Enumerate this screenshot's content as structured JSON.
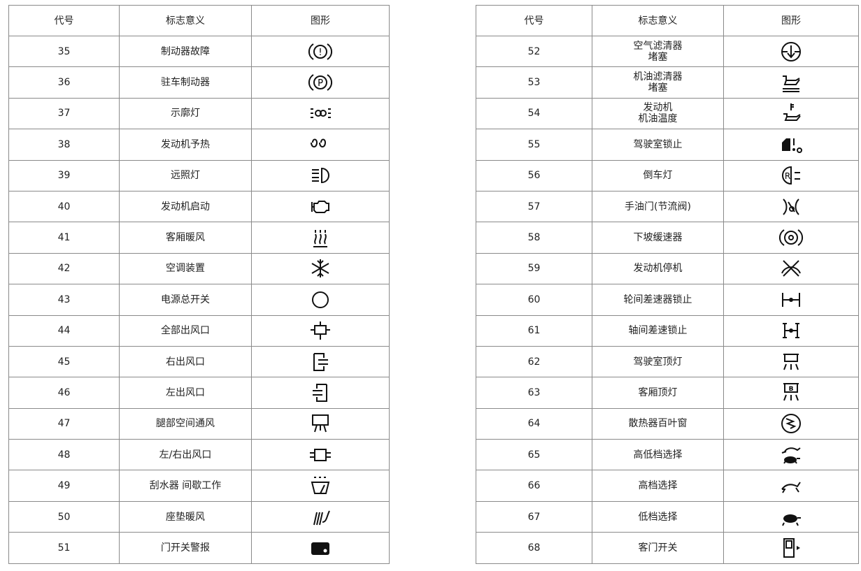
{
  "headers": {
    "code": "代号",
    "meaning": "标志意义",
    "graphic": "图形"
  },
  "left_table": [
    {
      "code": "35",
      "meaning": "制动器故障",
      "icon": "brake-fault-icon"
    },
    {
      "code": "36",
      "meaning": "驻车制动器",
      "icon": "parking-brake-icon"
    },
    {
      "code": "37",
      "meaning": "示廓灯",
      "icon": "position-lamp-icon"
    },
    {
      "code": "38",
      "meaning": "发动机予热",
      "icon": "glow-plug-icon"
    },
    {
      "code": "39",
      "meaning": "远照灯",
      "icon": "high-beam-icon"
    },
    {
      "code": "40",
      "meaning": "发动机启动",
      "icon": "engine-start-icon"
    },
    {
      "code": "41",
      "meaning": "客厢暖风",
      "icon": "cabin-heater-icon"
    },
    {
      "code": "42",
      "meaning": "空调装置",
      "icon": "snowflake-icon"
    },
    {
      "code": "43",
      "meaning": "电源总开关",
      "icon": "circle-icon"
    },
    {
      "code": "44",
      "meaning": "全部出风口",
      "icon": "all-vents-icon"
    },
    {
      "code": "45",
      "meaning": "右出风口",
      "icon": "right-vent-icon"
    },
    {
      "code": "46",
      "meaning": "左出风口",
      "icon": "left-vent-icon"
    },
    {
      "code": "47",
      "meaning": "腿部空间通风",
      "icon": "leg-vent-icon"
    },
    {
      "code": "48",
      "meaning": "左/右出风口",
      "icon": "left-right-vent-icon"
    },
    {
      "code": "49",
      "meaning": "刮水器 间歇工作",
      "icon": "wiper-interval-icon"
    },
    {
      "code": "50",
      "meaning": "座垫暖风",
      "icon": "seat-heater-icon"
    },
    {
      "code": "51",
      "meaning": "门开关警报",
      "icon": "door-alarm-icon"
    }
  ],
  "right_table": [
    {
      "code": "52",
      "meaning": "空气滤清器\n堵塞",
      "icon": "air-filter-icon"
    },
    {
      "code": "53",
      "meaning": "机油滤清器\n堵塞",
      "icon": "oil-filter-icon"
    },
    {
      "code": "54",
      "meaning": "发动机\n机油温度",
      "icon": "oil-temp-icon"
    },
    {
      "code": "55",
      "meaning": "驾驶室锁止",
      "icon": "cab-lock-icon"
    },
    {
      "code": "56",
      "meaning": "倒车灯",
      "icon": "reverse-lamp-icon"
    },
    {
      "code": "57",
      "meaning": "手油门(节流阀)",
      "icon": "hand-throttle-icon"
    },
    {
      "code": "58",
      "meaning": "下坡缓速器",
      "icon": "retarder-icon"
    },
    {
      "code": "59",
      "meaning": "发动机停机",
      "icon": "engine-stop-icon"
    },
    {
      "code": "60",
      "meaning": "轮间差速器锁止",
      "icon": "wheel-diff-lock-icon"
    },
    {
      "code": "61",
      "meaning": "轴间差速锁止",
      "icon": "axle-diff-lock-icon"
    },
    {
      "code": "62",
      "meaning": "驾驶室顶灯",
      "icon": "cab-dome-lamp-icon"
    },
    {
      "code": "63",
      "meaning": "客厢顶灯",
      "icon": "cabin-dome-lamp-icon"
    },
    {
      "code": "64",
      "meaning": "散热器百叶窗",
      "icon": "radiator-shutter-icon"
    },
    {
      "code": "65",
      "meaning": "高低档选择",
      "icon": "hare-tortoise-icon"
    },
    {
      "code": "66",
      "meaning": "高档选择",
      "icon": "hare-icon"
    },
    {
      "code": "67",
      "meaning": "低档选择",
      "icon": "tortoise-icon"
    },
    {
      "code": "68",
      "meaning": "客门开关",
      "icon": "passenger-door-icon"
    }
  ]
}
